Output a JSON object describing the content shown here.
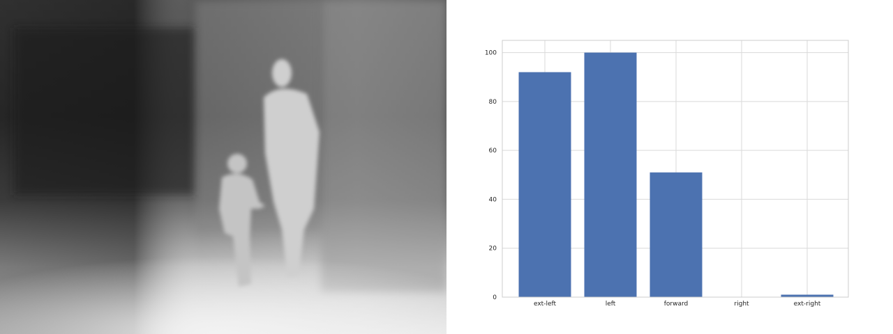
{
  "depth_map": {
    "subject": "child-and-adult-walking"
  },
  "chart_data": {
    "type": "bar",
    "categories": [
      "ext-left",
      "left",
      "forward",
      "right",
      "ext-right"
    ],
    "values": [
      92,
      100,
      51,
      0,
      1
    ],
    "ylim": [
      0,
      105
    ],
    "yticks": [
      0,
      20,
      40,
      60,
      80,
      100
    ],
    "grid": true,
    "bar_color": "#4c72b0",
    "grid_color": "#d9d9d9",
    "title": "",
    "xlabel": "",
    "ylabel": ""
  }
}
